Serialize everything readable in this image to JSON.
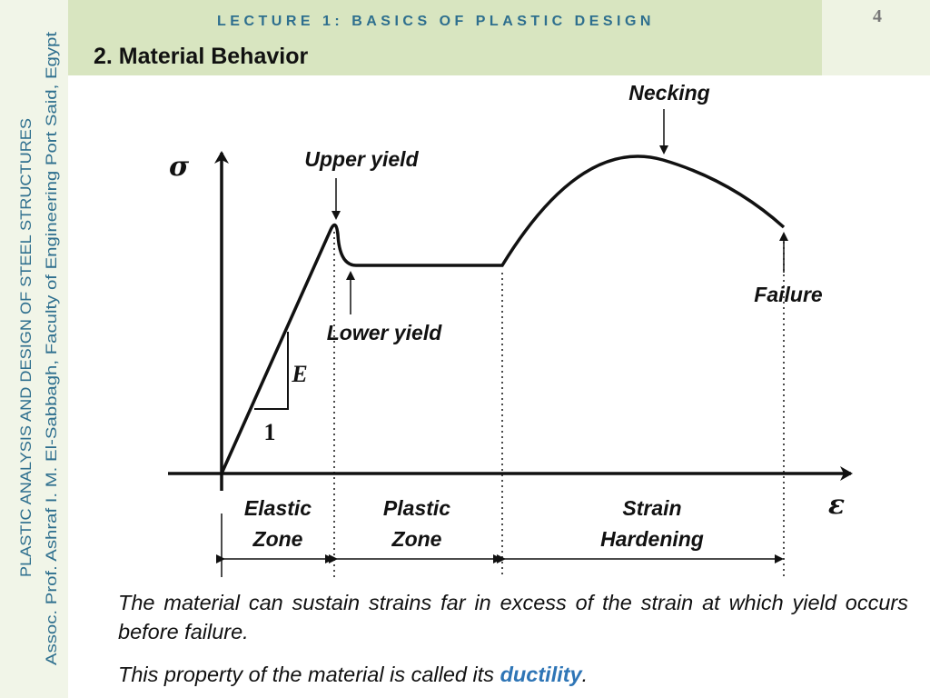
{
  "header": {
    "lecture": "LECTURE 1: BASICS OF PLASTIC DESIGN",
    "page_number": "4",
    "section": "2. Material Behavior"
  },
  "sidebar": {
    "course": "PLASTIC ANALYSIS AND DESIGN OF STEEL STRUCTURES",
    "author": "Assoc. Prof.  Ashraf I. M. El-Sabbagh,  Faculty of Engineering Port Said, Egypt"
  },
  "diagram": {
    "y_symbol": "σ",
    "x_symbol": "ε",
    "slope_label": "E",
    "slope_run": "1",
    "annotations": [
      "Upper yield",
      "Lower yield",
      "Necking",
      "Failure"
    ],
    "zones": [
      {
        "line1": "Elastic",
        "line2": "Zone"
      },
      {
        "line1": "Plastic",
        "line2": "Zone"
      },
      {
        "line1": "Strain",
        "line2": "Hardening"
      }
    ]
  },
  "body": {
    "paragraph_1": "The material can sustain strains far in excess of the strain at which yield occurs before failure.",
    "paragraph_2": [
      "This property of the material is called its ",
      "ductility",
      "."
    ]
  }
}
